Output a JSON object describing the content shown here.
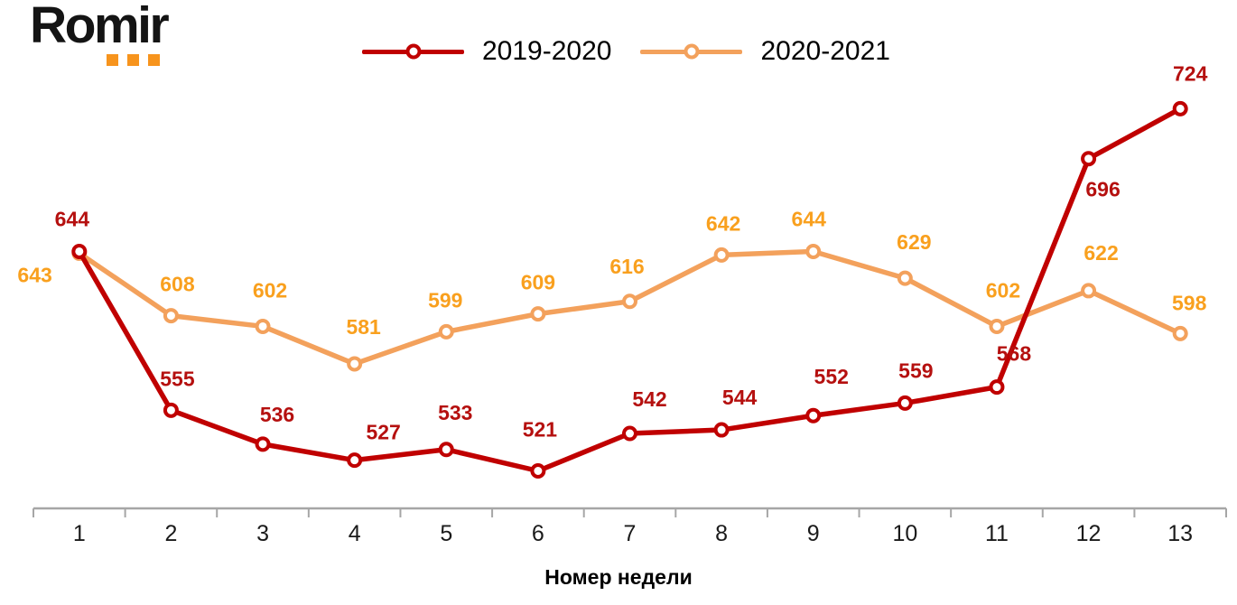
{
  "logo": {
    "text": "Romir"
  },
  "colors": {
    "background": "#FFFFFF",
    "axis": "#A6A6A6",
    "tick_label": "#1A1A1A",
    "logo_text": "#141414",
    "logo_dots": "#F7941D"
  },
  "chart_data": {
    "type": "line",
    "title": "",
    "xlabel": "Номер недели",
    "ylabel": "",
    "x_tick_labels": [
      "1",
      "2",
      "3",
      "4",
      "5",
      "6",
      "7",
      "8",
      "9",
      "10",
      "11",
      "12",
      "13"
    ],
    "ylim": [
      500,
      750
    ],
    "grid": false,
    "legend_position": "top-center",
    "marker_style": "open-circle",
    "series": [
      {
        "name": "2019-2020",
        "color": "#C00000",
        "label_color": "#B5100F",
        "values": [
          644,
          555,
          536,
          527,
          533,
          521,
          542,
          544,
          552,
          559,
          568,
          696,
          724
        ],
        "label_offsets": [
          [
            -8,
            -28
          ],
          [
            7,
            -27
          ],
          [
            16,
            -25
          ],
          [
            32,
            -23
          ],
          [
            10,
            -33
          ],
          [
            2,
            -38
          ],
          [
            22,
            -30
          ],
          [
            20,
            -28
          ],
          [
            20,
            -35
          ],
          [
            12,
            -28
          ],
          [
            19,
            -29
          ],
          [
            16,
            42
          ],
          [
            11,
            -31
          ]
        ]
      },
      {
        "name": "2020-2021",
        "color": "#F3A15C",
        "label_color": "#F9A01E",
        "values": [
          643,
          608,
          602,
          581,
          599,
          609,
          616,
          642,
          644,
          629,
          602,
          622,
          598
        ],
        "label_offsets": [
          [
            -30,
            32
          ],
          [
            7,
            -27
          ],
          [
            8,
            -32
          ],
          [
            10,
            -33
          ],
          [
            -1,
            -27
          ],
          [
            0,
            -27
          ],
          [
            -3,
            -31
          ],
          [
            2,
            -27
          ],
          [
            -5,
            -28
          ],
          [
            10,
            -32
          ],
          [
            7,
            -32
          ],
          [
            14,
            -34
          ],
          [
            10,
            -26
          ]
        ],
        "label_anchors": {
          "0": "end"
        }
      }
    ]
  }
}
